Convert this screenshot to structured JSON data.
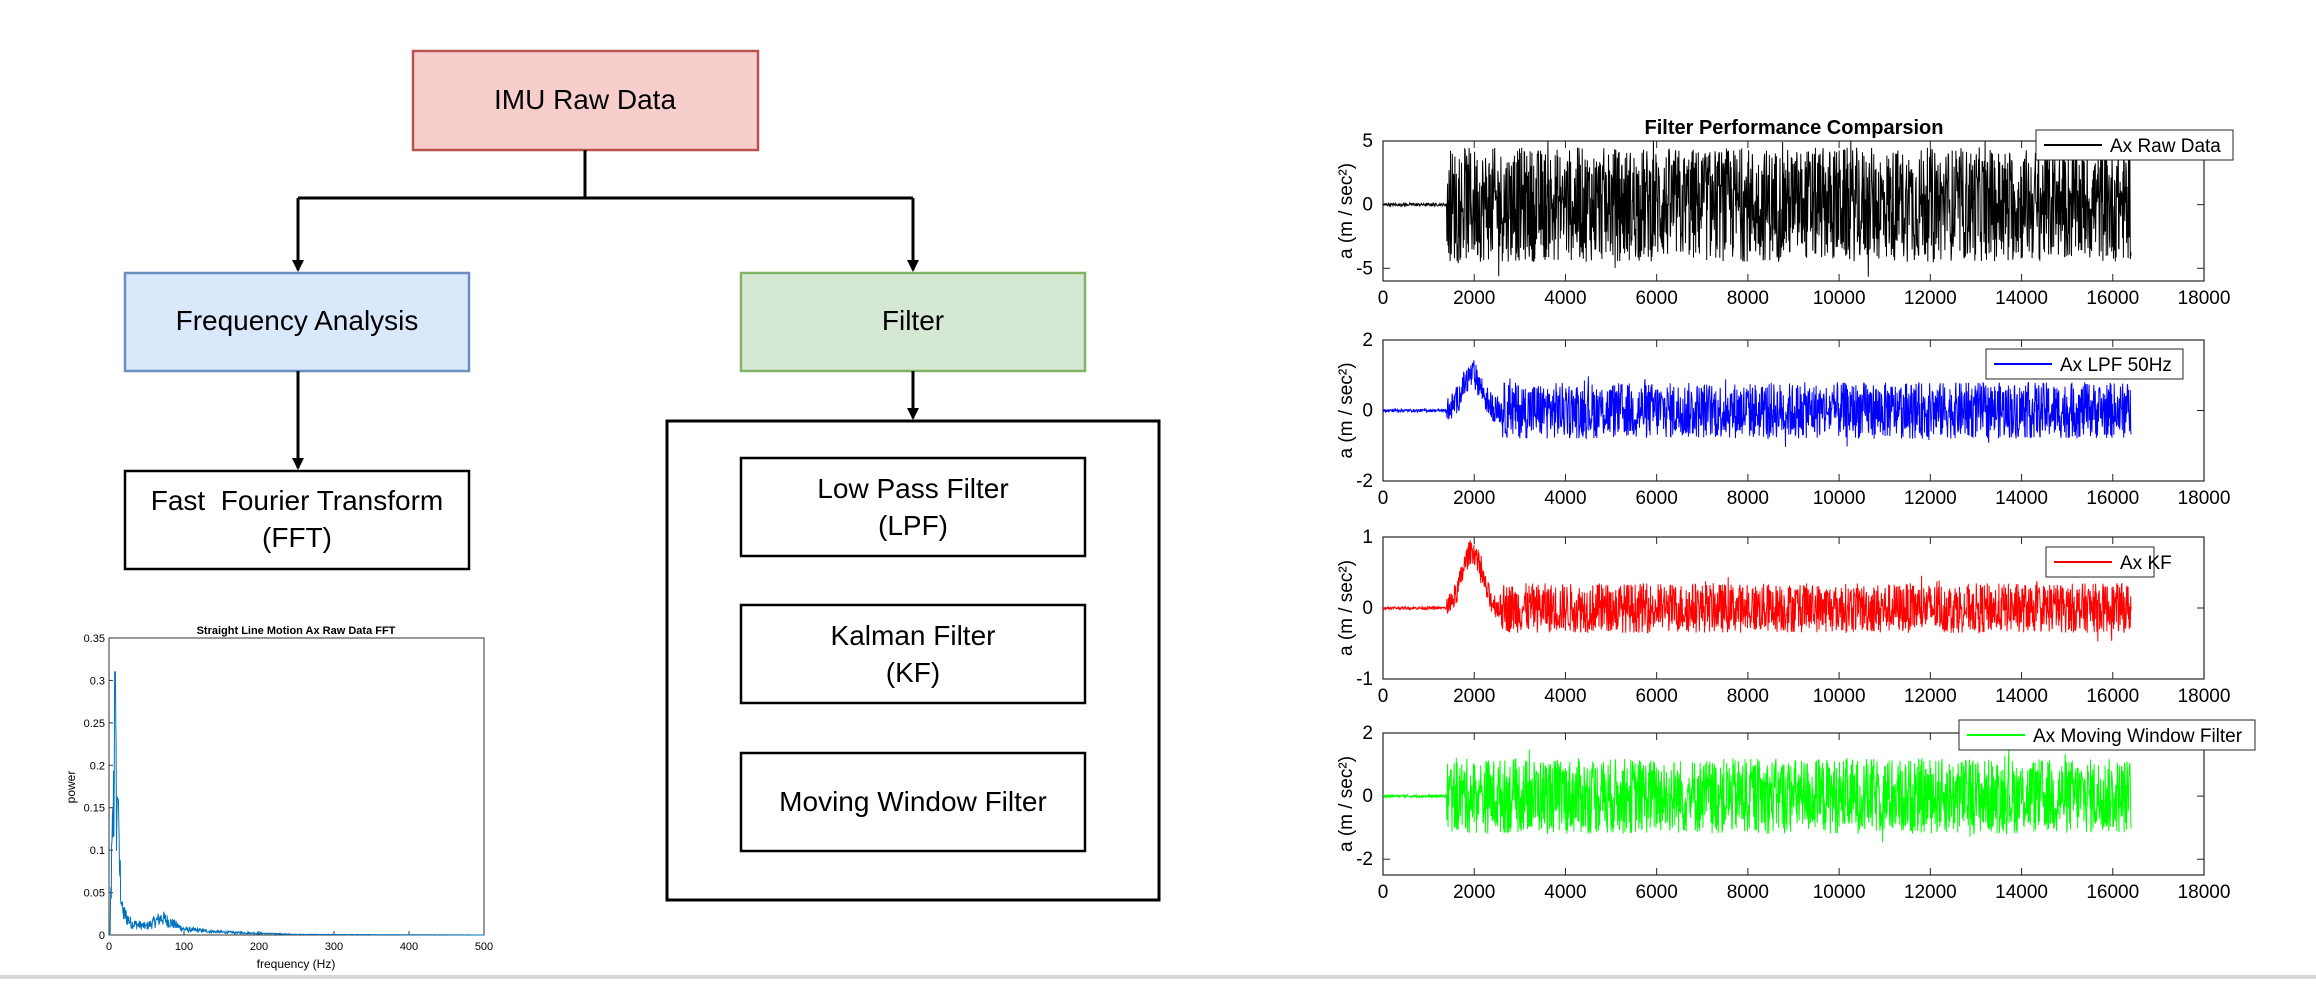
{
  "flow": {
    "imu": "IMU Raw Data",
    "freq": "Frequency Analysis",
    "filter": "Filter",
    "fft_line1": "Fast  Fourier Transform",
    "fft_line2": "(FFT)",
    "lpf_line1": "Low Pass Filter",
    "lpf_line2": "(LPF)",
    "kf_line1": "Kalman Filter",
    "kf_line2": "(KF)",
    "mwf": "Moving Window Filter",
    "colors": {
      "imu_fill": "#f8cecc",
      "imu_stroke": "#b85450",
      "freq_fill": "#dae8fc",
      "freq_stroke": "#6c8ebf",
      "filter_fill": "#d5e8d4",
      "filter_stroke": "#82b366"
    }
  },
  "chart_data": [
    {
      "type": "line",
      "title": "Straight Line Motion Ax Raw Data FFT",
      "xlabel": "frequency (Hz)",
      "ylabel": "power",
      "xlim": [
        0,
        500
      ],
      "ylim": [
        0,
        0.35
      ],
      "xticks": [
        "0",
        "100",
        "200",
        "300",
        "400",
        "500"
      ],
      "yticks": [
        "0",
        "0.05",
        "0.1",
        "0.15",
        "0.2",
        "0.25",
        "0.3",
        "0.35"
      ],
      "color": "#0072bd",
      "peaks": [
        {
          "x": 2,
          "y": 0.05
        },
        {
          "x": 8,
          "y": 0.31
        },
        {
          "x": 12,
          "y": 0.16
        },
        {
          "x": 18,
          "y": 0.04
        },
        {
          "x": 30,
          "y": 0.02
        },
        {
          "x": 50,
          "y": 0.015
        },
        {
          "x": 70,
          "y": 0.03
        },
        {
          "x": 100,
          "y": 0.01
        },
        {
          "x": 150,
          "y": 0.005
        },
        {
          "x": 250,
          "y": 0.001
        },
        {
          "x": 500,
          "y": 0.0
        }
      ]
    },
    {
      "type": "line",
      "title": "Filter Performance Comparsion",
      "ylabel": "a (m / sec²)",
      "xlim": [
        0,
        18000
      ],
      "xticks": [
        "0",
        "2000",
        "4000",
        "6000",
        "8000",
        "10000",
        "12000",
        "14000",
        "16000",
        "18000"
      ],
      "series": [
        {
          "name": "Ax Raw Data",
          "color": "#000000",
          "ylim": [
            -6,
            5
          ],
          "yticks": [
            "5",
            "0",
            "-5"
          ],
          "onset_x": 1400,
          "end_x": 16400,
          "amplitude": 4.5,
          "burst_peak": 0
        },
        {
          "name": "Ax LPF 50Hz",
          "color": "#0000ff",
          "ylim": [
            -2,
            2
          ],
          "yticks": [
            "2",
            "0",
            "-2"
          ],
          "onset_x": 1400,
          "end_x": 16400,
          "amplitude": 0.8,
          "burst_peak": 1.0
        },
        {
          "name": "Ax KF",
          "color": "#ff0000",
          "ylim": [
            -1,
            1
          ],
          "yticks": [
            "1",
            "0",
            "-1"
          ],
          "onset_x": 1400,
          "end_x": 16400,
          "amplitude": 0.35,
          "burst_peak": 0.8
        },
        {
          "name": "Ax Moving Window Filter",
          "color": "#00ff00",
          "ylim": [
            -2.5,
            2
          ],
          "yticks": [
            "2",
            "0",
            "-2"
          ],
          "onset_x": 1400,
          "end_x": 16400,
          "amplitude": 1.2,
          "burst_peak": 0
        }
      ]
    }
  ]
}
